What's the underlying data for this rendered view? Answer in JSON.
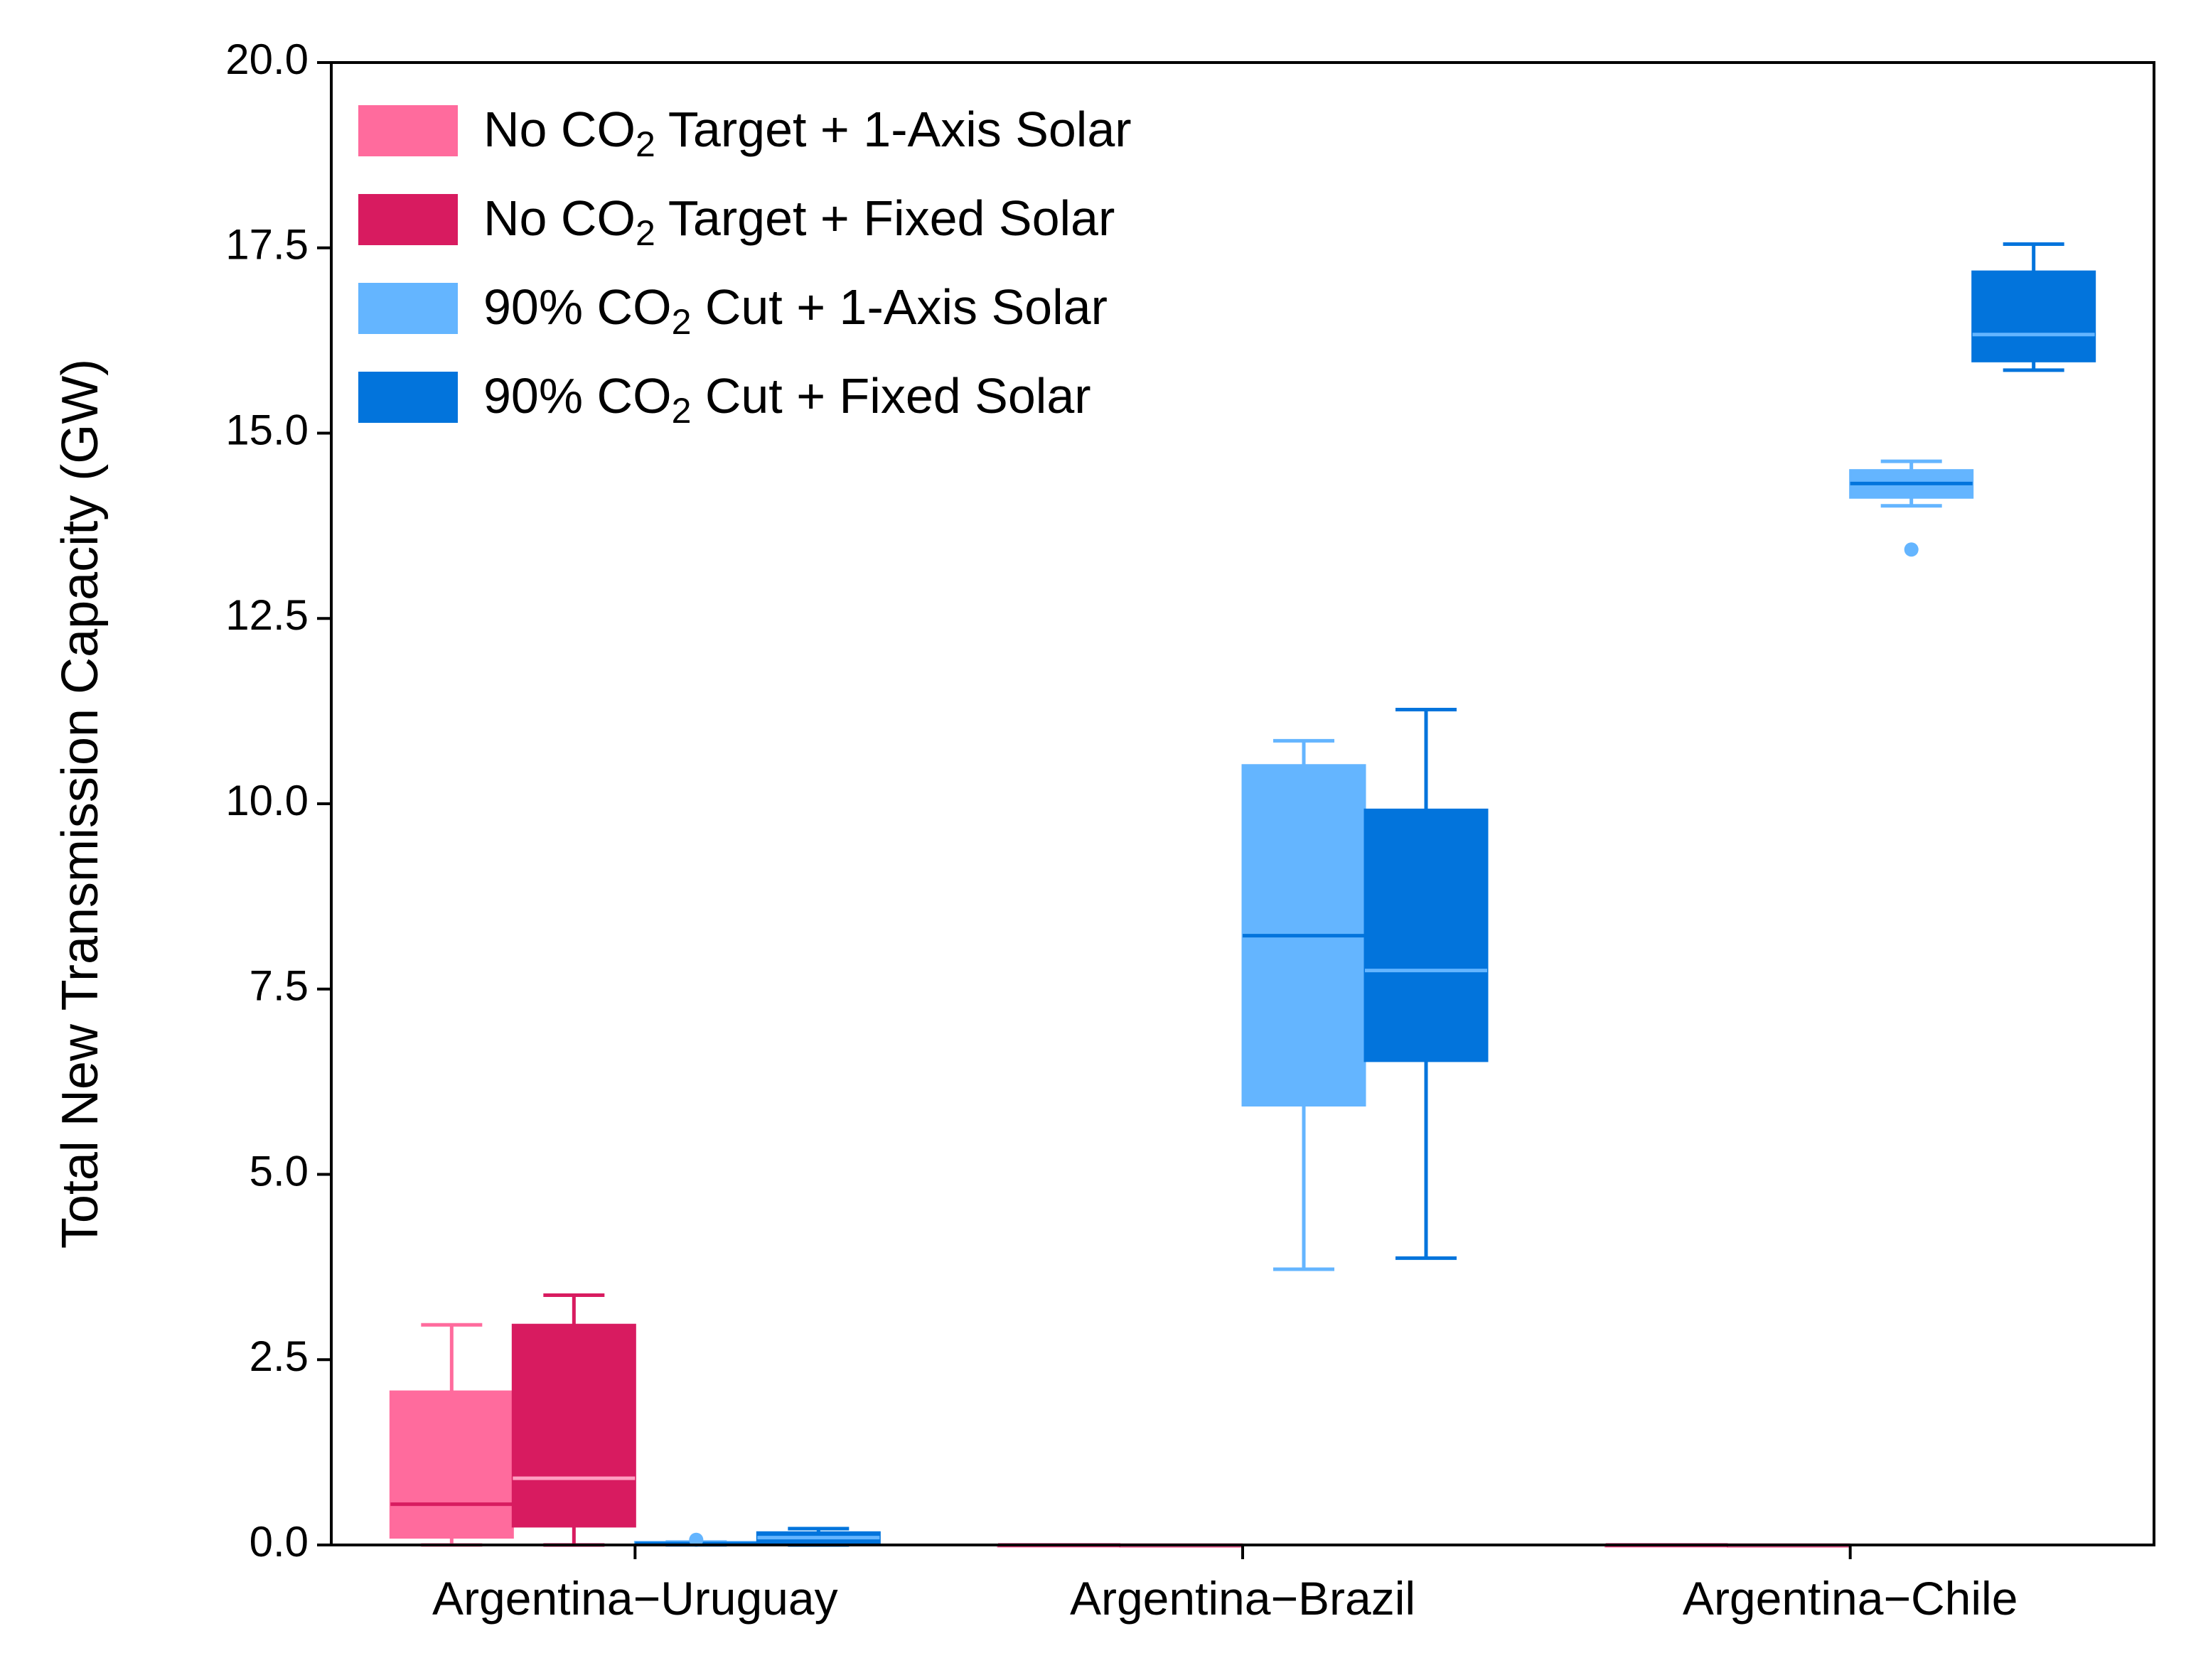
{
  "chart_data": {
    "type": "box",
    "title": "",
    "xlabel": "",
    "ylabel": "Total New Transmission Capacity (GW)",
    "ylim": [
      0,
      20
    ],
    "yticks": [
      "0.0",
      "2.5",
      "5.0",
      "7.5",
      "10.0",
      "12.5",
      "15.0",
      "17.5",
      "20.0"
    ],
    "categories": [
      "Argentina−Uruguay",
      "Argentina−Brazil",
      "Argentina−Chile"
    ],
    "legend_position": "top-left",
    "grid": false,
    "series": [
      {
        "name": "No CO2 Target + 1-Axis Solar",
        "legend": {
          "pre": "No CO",
          "sub": "2",
          "post": " Target + 1-Axis Solar"
        },
        "color": "#ff6b9d",
        "median_color": "#d81b60",
        "boxes": [
          {
            "whislo": 0.0,
            "q1": 0.1,
            "med": 0.55,
            "q3": 2.07,
            "whishi": 2.97,
            "fliers": []
          },
          {
            "whislo": 0.0,
            "q1": 0.0,
            "med": 0.0,
            "q3": 0.0,
            "whishi": 0.0,
            "fliers": []
          },
          {
            "whislo": 0.0,
            "q1": 0.0,
            "med": 0.0,
            "q3": 0.0,
            "whishi": 0.0,
            "fliers": []
          }
        ]
      },
      {
        "name": "No CO2 Target + Fixed Solar",
        "legend": {
          "pre": "No CO",
          "sub": "2",
          "post": " Target + Fixed Solar"
        },
        "color": "#d81b60",
        "median_color": "#ff9ec0",
        "boxes": [
          {
            "whislo": 0.0,
            "q1": 0.25,
            "med": 0.9,
            "q3": 2.97,
            "whishi": 3.37,
            "fliers": []
          },
          {
            "whislo": 0.0,
            "q1": 0.0,
            "med": 0.0,
            "q3": 0.0,
            "whishi": 0.0,
            "fliers": []
          },
          {
            "whislo": 0.0,
            "q1": 0.0,
            "med": 0.0,
            "q3": 0.0,
            "whishi": 0.0,
            "fliers": []
          }
        ]
      },
      {
        "name": "90% CO2 Cut + 1-Axis Solar",
        "legend": {
          "pre": "90% CO",
          "sub": "2",
          "post": " Cut + 1-Axis Solar"
        },
        "color": "#64b5ff",
        "median_color": "#0274dc",
        "boxes": [
          {
            "whislo": 0.0,
            "q1": 0.0,
            "med": 0.02,
            "q3": 0.04,
            "whishi": 0.04,
            "fliers": [
              0.07
            ]
          },
          {
            "whislo": 3.72,
            "q1": 5.93,
            "med": 8.22,
            "q3": 10.52,
            "whishi": 10.85,
            "fliers": []
          },
          {
            "whislo": 14.02,
            "q1": 14.13,
            "med": 14.32,
            "q3": 14.5,
            "whishi": 14.62,
            "fliers": [
              13.43
            ]
          }
        ]
      },
      {
        "name": "90% CO2 Cut + Fixed Solar",
        "legend": {
          "pre": "90% CO",
          "sub": "2",
          "post": " Cut + Fixed Solar"
        },
        "color": "#0274dc",
        "median_color": "#64b5ff",
        "boxes": [
          {
            "whislo": 0.0,
            "q1": 0.02,
            "med": 0.1,
            "q3": 0.17,
            "whishi": 0.22,
            "fliers": []
          },
          {
            "whislo": 3.87,
            "q1": 6.53,
            "med": 7.75,
            "q3": 9.92,
            "whishi": 11.27,
            "fliers": []
          },
          {
            "whislo": 15.85,
            "q1": 15.97,
            "med": 16.33,
            "q3": 17.18,
            "whishi": 17.55,
            "fliers": []
          }
        ]
      }
    ]
  }
}
